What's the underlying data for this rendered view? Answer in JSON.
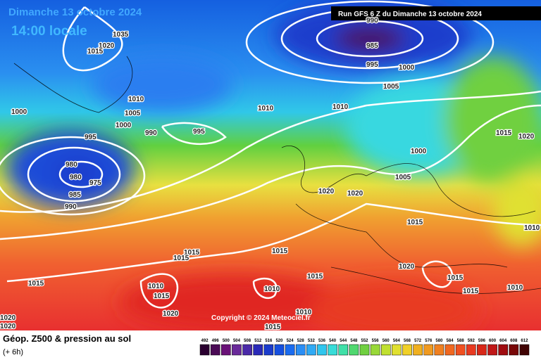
{
  "header": {
    "date": "Dimanche 13 octobre 2024",
    "time": "14:00 locale",
    "run": "Run GFS 6 Z du Dimanche 13 octobre 2024"
  },
  "copyright": "Copyright © 2024 Meteociel.fr",
  "footer": {
    "title": "Géop. Z500 & pression au sol",
    "step": "(+ 6h)"
  },
  "isobar_labels": [
    "1035",
    "1020",
    "1015",
    "990",
    "985",
    "995",
    "1000",
    "1005",
    "1010",
    "1000",
    "1005",
    "1010",
    "1010",
    "1000",
    "990",
    "995",
    "995",
    "1015",
    "1020",
    "1000",
    "980",
    "980",
    "975",
    "985",
    "990",
    "1005",
    "1020",
    "1020",
    "1015",
    "1010",
    "1015",
    "1015",
    "1015",
    "1020",
    "1015",
    "1015",
    "1010",
    "1010",
    "1015",
    "1015",
    "1010",
    "1015",
    "1020",
    "1020",
    "1020",
    "1015",
    "1010"
  ],
  "colorbar": {
    "labels": [
      492,
      496,
      500,
      504,
      508,
      512,
      516,
      520,
      524,
      528,
      532,
      536,
      540,
      544,
      548,
      552,
      556,
      560,
      564,
      568,
      572,
      576,
      580,
      584,
      588,
      592,
      596,
      600,
      604,
      608,
      612
    ],
    "colors": [
      "#2a0030",
      "#4a0a55",
      "#6a1278",
      "#6a2a9a",
      "#4a2aa8",
      "#2a2ab8",
      "#1a3ccc",
      "#1550e0",
      "#1a6cf0",
      "#2a8ef5",
      "#30aaf5",
      "#30c6ee",
      "#38dcd8",
      "#40e0a8",
      "#50d870",
      "#70d040",
      "#98d838",
      "#c0e030",
      "#e0e030",
      "#f0d028",
      "#f0b020",
      "#f09a20",
      "#f08020",
      "#f06820",
      "#f05020",
      "#e83a20",
      "#d82818",
      "#c01818",
      "#a00c10",
      "#780808",
      "#400404"
    ]
  }
}
